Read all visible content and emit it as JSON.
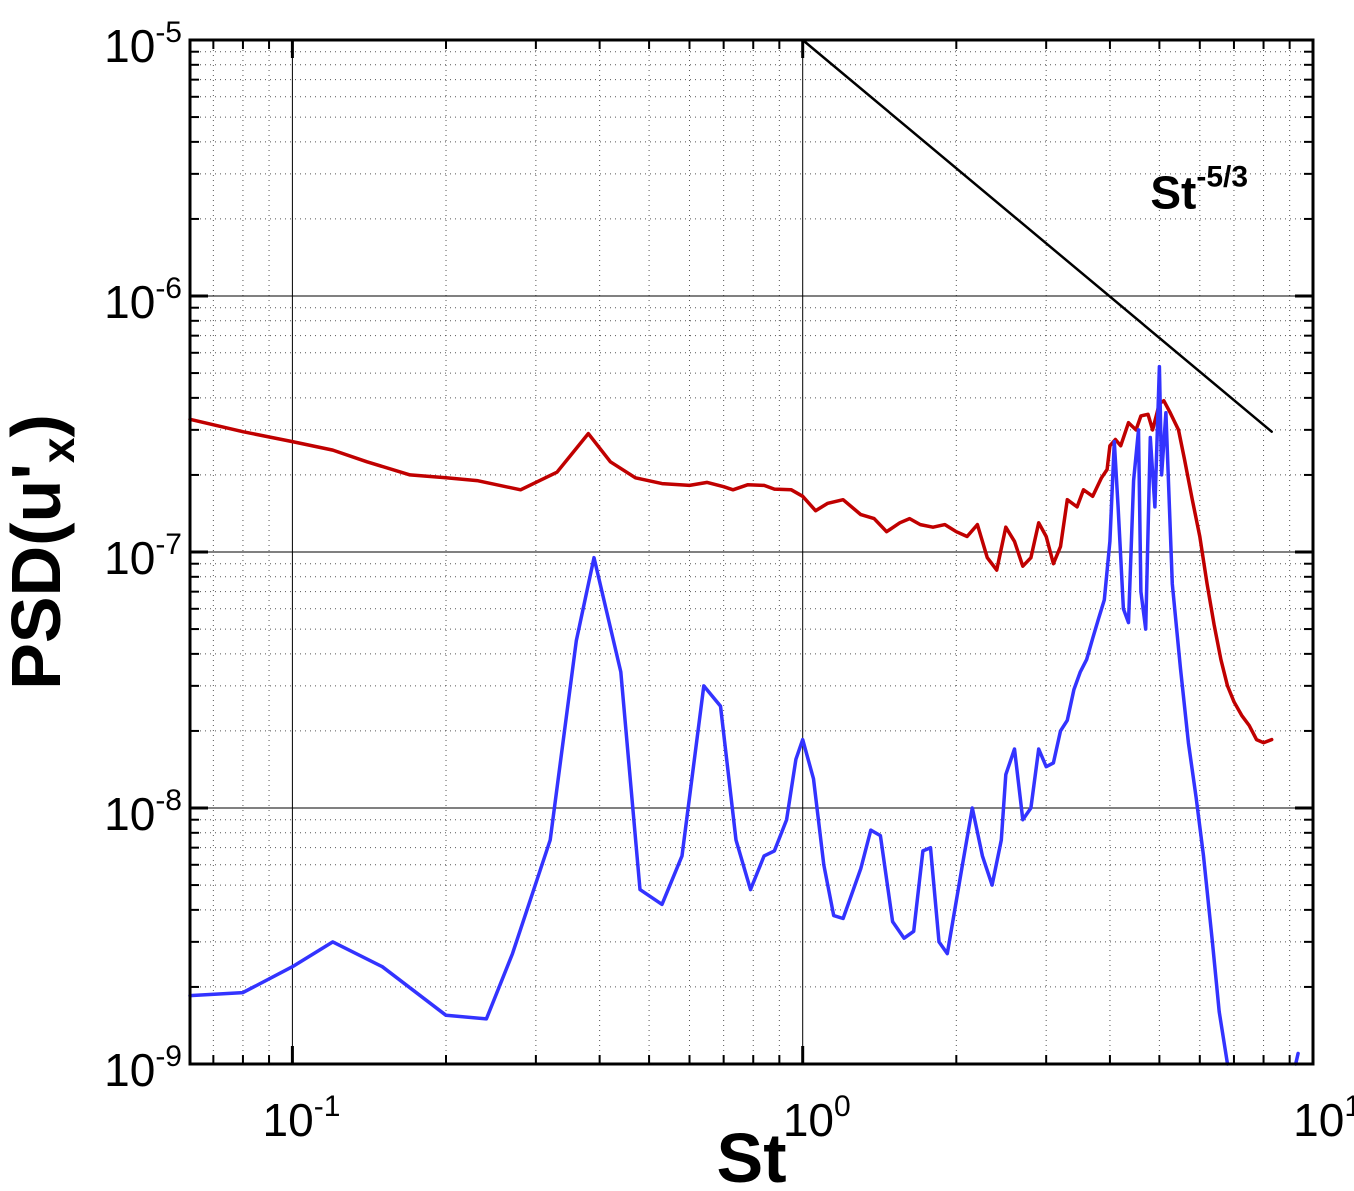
{
  "chart_data": {
    "type": "line",
    "xscale": "log",
    "yscale": "log",
    "xlim": [
      0.063,
      10
    ],
    "ylim": [
      1e-09,
      1e-05
    ],
    "grid": true,
    "xlabel": {
      "main": "St"
    },
    "ylabel": {
      "main": "PSD(u'",
      "sub": "x",
      "end": ")"
    },
    "x_ticks": [
      {
        "base": "10",
        "exp": "-1",
        "value": 0.1
      },
      {
        "base": "10",
        "exp": "0",
        "value": 1
      },
      {
        "base": "10",
        "exp": "1",
        "value": 10
      }
    ],
    "y_ticks": [
      {
        "base": "10",
        "exp": "-5",
        "value": 1e-05
      },
      {
        "base": "10",
        "exp": "-6",
        "value": 1e-06
      },
      {
        "base": "10",
        "exp": "-7",
        "value": 1e-07
      },
      {
        "base": "10",
        "exp": "-8",
        "value": 1e-08
      },
      {
        "base": "10",
        "exp": "-9",
        "value": 1e-09
      }
    ],
    "annotation": {
      "base": "St",
      "exp": "-5/3",
      "at": [
        4.8,
        2.2e-06
      ]
    },
    "series": [
      {
        "color": "#c00000",
        "points": [
          [
            0.063,
            3.3e-07
          ],
          [
            0.08,
            2.95e-07
          ],
          [
            0.1,
            2.7e-07
          ],
          [
            0.12,
            2.5e-07
          ],
          [
            0.14,
            2.25e-07
          ],
          [
            0.17,
            2e-07
          ],
          [
            0.2,
            1.95e-07
          ],
          [
            0.23,
            1.9e-07
          ],
          [
            0.28,
            1.75e-07
          ],
          [
            0.33,
            2.05e-07
          ],
          [
            0.38,
            2.9e-07
          ],
          [
            0.42,
            2.25e-07
          ],
          [
            0.47,
            1.95e-07
          ],
          [
            0.53,
            1.85e-07
          ],
          [
            0.6,
            1.82e-07
          ],
          [
            0.65,
            1.87e-07
          ],
          [
            0.7,
            1.8e-07
          ],
          [
            0.73,
            1.75e-07
          ],
          [
            0.78,
            1.83e-07
          ],
          [
            0.84,
            1.82e-07
          ],
          [
            0.88,
            1.76e-07
          ],
          [
            0.95,
            1.75e-07
          ],
          [
            1.0,
            1.65e-07
          ],
          [
            1.06,
            1.45e-07
          ],
          [
            1.12,
            1.55e-07
          ],
          [
            1.2,
            1.6e-07
          ],
          [
            1.3,
            1.4e-07
          ],
          [
            1.38,
            1.35e-07
          ],
          [
            1.46,
            1.2e-07
          ],
          [
            1.55,
            1.3e-07
          ],
          [
            1.62,
            1.35e-07
          ],
          [
            1.7,
            1.28e-07
          ],
          [
            1.8,
            1.25e-07
          ],
          [
            1.9,
            1.28e-07
          ],
          [
            2.0,
            1.2e-07
          ],
          [
            2.1,
            1.15e-07
          ],
          [
            2.2,
            1.28e-07
          ],
          [
            2.3,
            9.5e-08
          ],
          [
            2.4,
            8.5e-08
          ],
          [
            2.5,
            1.25e-07
          ],
          [
            2.6,
            1.1e-07
          ],
          [
            2.7,
            8.8e-08
          ],
          [
            2.8,
            9.5e-08
          ],
          [
            2.9,
            1.3e-07
          ],
          [
            3.0,
            1.15e-07
          ],
          [
            3.1,
            9e-08
          ],
          [
            3.2,
            1.05e-07
          ],
          [
            3.3,
            1.6e-07
          ],
          [
            3.45,
            1.5e-07
          ],
          [
            3.55,
            1.75e-07
          ],
          [
            3.7,
            1.65e-07
          ],
          [
            3.85,
            1.95e-07
          ],
          [
            3.95,
            2.1e-07
          ],
          [
            4.0,
            2.6e-07
          ],
          [
            4.1,
            2.75e-07
          ],
          [
            4.2,
            2.6e-07
          ],
          [
            4.35,
            3.2e-07
          ],
          [
            4.5,
            3e-07
          ],
          [
            4.6,
            3.4e-07
          ],
          [
            4.75,
            3.45e-07
          ],
          [
            4.85,
            3e-07
          ],
          [
            5.0,
            3.8e-07
          ],
          [
            5.1,
            3.9e-07
          ],
          [
            5.25,
            3.5e-07
          ],
          [
            5.45,
            3e-07
          ],
          [
            5.6,
            2.3e-07
          ],
          [
            5.8,
            1.6e-07
          ],
          [
            6.0,
            1.15e-07
          ],
          [
            6.2,
            7.5e-08
          ],
          [
            6.4,
            5.2e-08
          ],
          [
            6.6,
            3.8e-08
          ],
          [
            6.8,
            3e-08
          ],
          [
            7.0,
            2.6e-08
          ],
          [
            7.25,
            2.3e-08
          ],
          [
            7.5,
            2.1e-08
          ],
          [
            7.75,
            1.85e-08
          ],
          [
            8.0,
            1.8e-08
          ],
          [
            8.3,
            1.85e-08
          ]
        ]
      },
      {
        "color": "#3333ff",
        "points": [
          [
            0.063,
            1.85e-09
          ],
          [
            0.08,
            1.9e-09
          ],
          [
            0.1,
            2.4e-09
          ],
          [
            0.12,
            3e-09
          ],
          [
            0.15,
            2.4e-09
          ],
          [
            0.2,
            1.55e-09
          ],
          [
            0.24,
            1.5e-09
          ],
          [
            0.27,
            2.7e-09
          ],
          [
            0.32,
            7.5e-09
          ],
          [
            0.36,
            4.5e-08
          ],
          [
            0.39,
            9.5e-08
          ],
          [
            0.44,
            3.4e-08
          ],
          [
            0.48,
            4.8e-09
          ],
          [
            0.53,
            4.2e-09
          ],
          [
            0.58,
            6.5e-09
          ],
          [
            0.64,
            3e-08
          ],
          [
            0.69,
            2.5e-08
          ],
          [
            0.74,
            7.5e-09
          ],
          [
            0.79,
            4.8e-09
          ],
          [
            0.84,
            6.5e-09
          ],
          [
            0.88,
            6.8e-09
          ],
          [
            0.93,
            9e-09
          ],
          [
            0.97,
            1.55e-08
          ],
          [
            1.0,
            1.85e-08
          ],
          [
            1.05,
            1.3e-08
          ],
          [
            1.1,
            6e-09
          ],
          [
            1.15,
            3.8e-09
          ],
          [
            1.2,
            3.7e-09
          ],
          [
            1.3,
            5.8e-09
          ],
          [
            1.36,
            8.2e-09
          ],
          [
            1.42,
            7.8e-09
          ],
          [
            1.5,
            3.6e-09
          ],
          [
            1.58,
            3.1e-09
          ],
          [
            1.65,
            3.3e-09
          ],
          [
            1.72,
            6.8e-09
          ],
          [
            1.78,
            7e-09
          ],
          [
            1.85,
            3e-09
          ],
          [
            1.92,
            2.7e-09
          ],
          [
            2.05,
            5.8e-09
          ],
          [
            2.15,
            1e-08
          ],
          [
            2.25,
            6.5e-09
          ],
          [
            2.35,
            5e-09
          ],
          [
            2.45,
            7.5e-09
          ],
          [
            2.5,
            1.35e-08
          ],
          [
            2.6,
            1.7e-08
          ],
          [
            2.7,
            9e-09
          ],
          [
            2.8,
            1e-08
          ],
          [
            2.9,
            1.7e-08
          ],
          [
            3.0,
            1.45e-08
          ],
          [
            3.1,
            1.5e-08
          ],
          [
            3.2,
            2e-08
          ],
          [
            3.3,
            2.2e-08
          ],
          [
            3.4,
            2.9e-08
          ],
          [
            3.5,
            3.4e-08
          ],
          [
            3.6,
            3.8e-08
          ],
          [
            3.7,
            4.6e-08
          ],
          [
            3.8,
            5.5e-08
          ],
          [
            3.9,
            6.5e-08
          ],
          [
            4.0,
            1.1e-07
          ],
          [
            4.08,
            2.7e-07
          ],
          [
            4.15,
            1.5e-07
          ],
          [
            4.25,
            6e-08
          ],
          [
            4.35,
            5.3e-08
          ],
          [
            4.45,
            1.9e-07
          ],
          [
            4.55,
            3e-07
          ],
          [
            4.6,
            7e-08
          ],
          [
            4.7,
            5e-08
          ],
          [
            4.8,
            2.8e-07
          ],
          [
            4.9,
            1.5e-07
          ],
          [
            5.0,
            5.3e-07
          ],
          [
            5.05,
            2e-07
          ],
          [
            5.15,
            3.5e-07
          ],
          [
            5.3,
            7.5e-08
          ],
          [
            5.5,
            3.5e-08
          ],
          [
            5.7,
            1.8e-08
          ],
          [
            5.9,
            1.1e-08
          ],
          [
            6.1,
            6.5e-09
          ],
          [
            6.35,
            3e-09
          ],
          [
            6.55,
            1.6e-09
          ],
          [
            6.8,
            1e-09
          ],
          [
            null,
            null
          ],
          [
            9.25,
            1e-09
          ],
          [
            9.35,
            1.1e-09
          ]
        ]
      },
      {
        "color": "#000000",
        "points": [
          [
            1.0,
            1e-05
          ],
          [
            8.3,
            2.95e-07
          ]
        ]
      }
    ]
  }
}
